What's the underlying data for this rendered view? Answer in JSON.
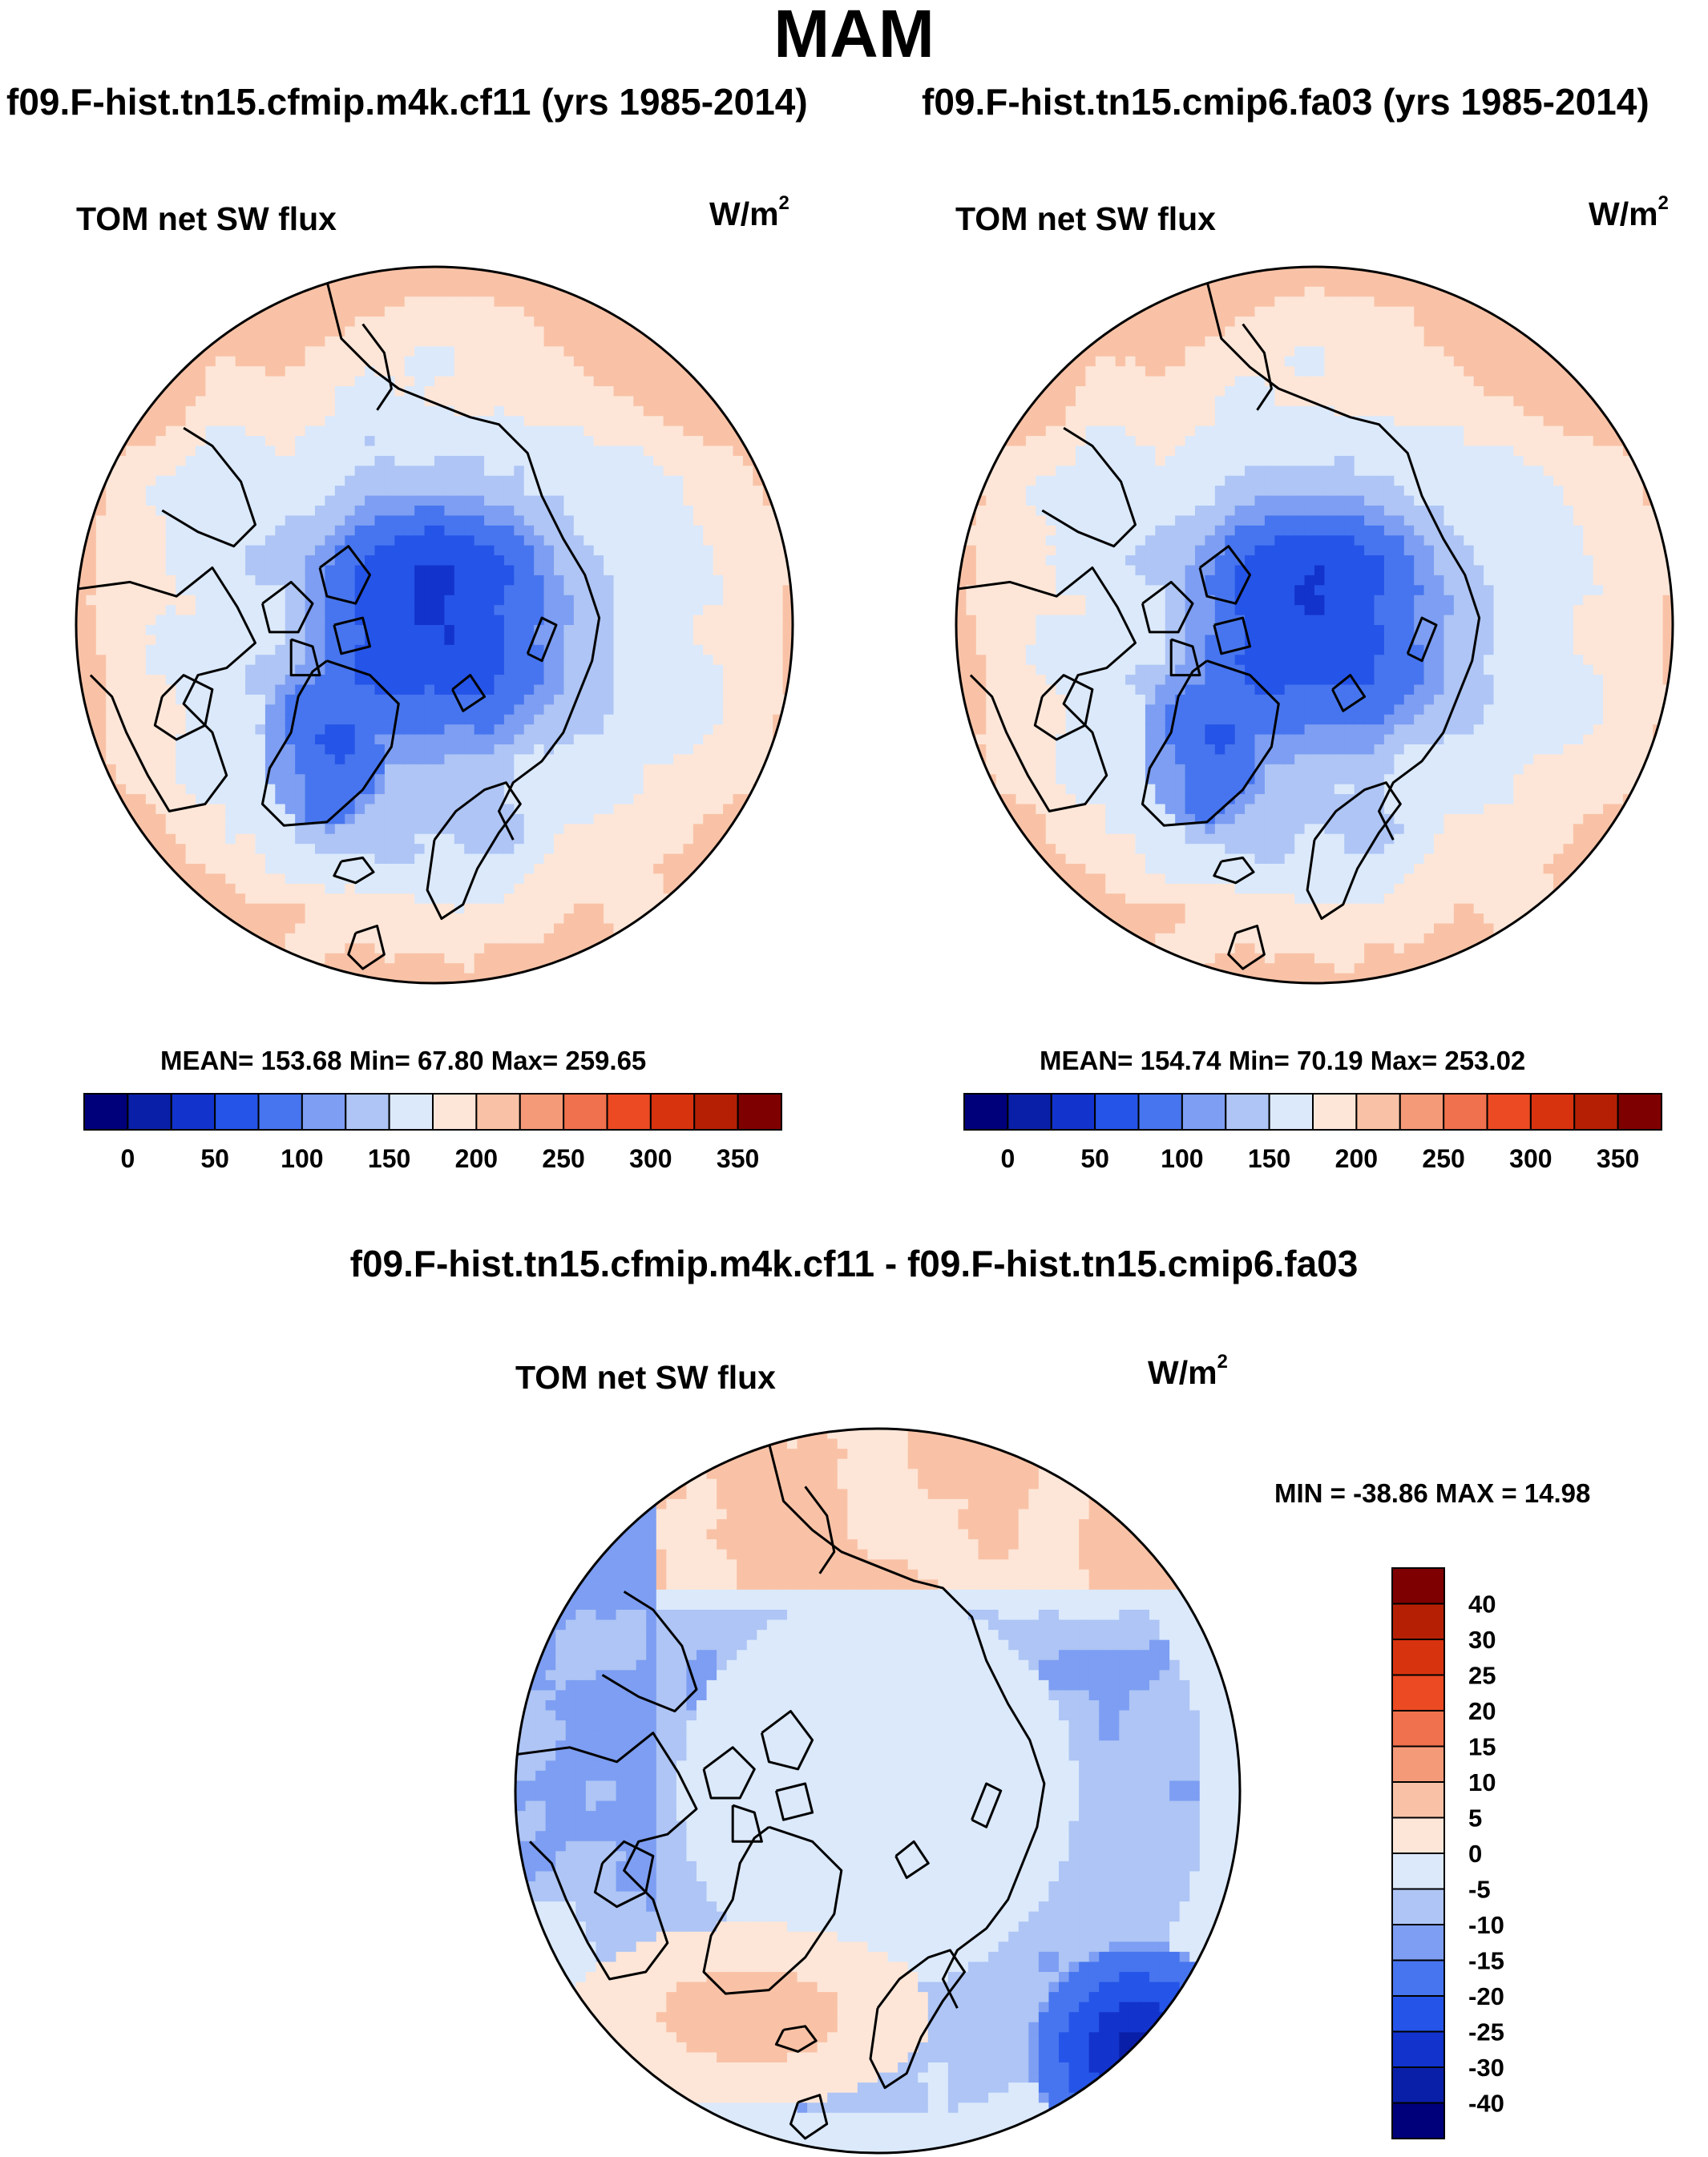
{
  "page": {
    "season": "MAM"
  },
  "panels": [
    {
      "case_title": "f09.F-hist.tn15.cfmip.m4k.cf11 (yrs 1985-2014)",
      "variable": "TOM net SW flux",
      "units_base": "W/m",
      "units_exp": "2",
      "stats": "MEAN= 153.68  Min=  67.80  Max= 259.65",
      "field": {
        "pole": 45,
        "lat60": 140,
        "lat40": 175,
        "edge": 205,
        "greenland": 80,
        "atlantic_edge": 200
      }
    },
    {
      "case_title": "f09.F-hist.tn15.cmip6.fa03 (yrs 1985-2014)",
      "variable": "TOM net SW flux",
      "units_base": "W/m",
      "units_exp": "2",
      "stats": "MEAN= 154.74  Min=  70.19  Max= 253.02",
      "field": {
        "pole": 48,
        "lat60": 142,
        "lat40": 176,
        "edge": 203,
        "greenland": 82,
        "atlantic_edge": 196
      }
    }
  ],
  "abs_colorbar": {
    "levels": [
      -25,
      0,
      25,
      50,
      75,
      100,
      125,
      150,
      175,
      200,
      225,
      250,
      275,
      300,
      325,
      350,
      375
    ],
    "tick_labels": [
      "0",
      "50",
      "100",
      "150",
      "200",
      "250",
      "300",
      "350"
    ],
    "tick_values": [
      0,
      50,
      100,
      150,
      200,
      250,
      300,
      350
    ],
    "colors": [
      "#00007a",
      "#0a1fa8",
      "#1233cc",
      "#2554e8",
      "#4775ef",
      "#7d9ef2",
      "#aec5f5",
      "#dbe9fb",
      "#fde6d8",
      "#f9c2a6",
      "#f49a78",
      "#ef714d",
      "#eb4a22",
      "#d8330f",
      "#b52005",
      "#7f0000"
    ]
  },
  "diff": {
    "title": "f09.F-hist.tn15.cfmip.m4k.cf11 - f09.F-hist.tn15.cmip6.fa03",
    "variable": "TOM net SW flux",
    "units_base": "W/m",
    "units_exp": "2",
    "minmax": "MIN = -38.86 MAX =  14.98",
    "colorbar": {
      "tick_labels": [
        "40",
        "30",
        "25",
        "20",
        "15",
        "10",
        "5",
        "0",
        "-5",
        "-10",
        "-15",
        "-20",
        "-25",
        "-30",
        "-40"
      ],
      "colors_top_to_bottom": [
        "#7f0000",
        "#b52005",
        "#d8330f",
        "#eb4a22",
        "#ef714d",
        "#f49a78",
        "#f9c2a6",
        "#fde6d8",
        "#dbe9fb",
        "#aec5f5",
        "#7d9ef2",
        "#4775ef",
        "#2554e8",
        "#1233cc",
        "#0a1fa8",
        "#00007a"
      ]
    }
  },
  "chart_data": [
    {
      "type": "heatmap",
      "title": "TOM net SW flux",
      "subtitle": "f09.F-hist.tn15.cfmip.m4k.cf11 (yrs 1985-2014)",
      "units": "W/m2",
      "projection": "north-polar stereographic",
      "mean": 153.68,
      "min": 67.8,
      "max": 259.65,
      "colorbar_ticks": [
        0,
        50,
        100,
        150,
        200,
        250,
        300,
        350
      ]
    },
    {
      "type": "heatmap",
      "title": "TOM net SW flux",
      "subtitle": "f09.F-hist.tn15.cmip6.fa03 (yrs 1985-2014)",
      "units": "W/m2",
      "projection": "north-polar stereographic",
      "mean": 154.74,
      "min": 70.19,
      "max": 253.02,
      "colorbar_ticks": [
        0,
        50,
        100,
        150,
        200,
        250,
        300,
        350
      ]
    },
    {
      "type": "heatmap",
      "title": "TOM net SW flux",
      "subtitle": "f09.F-hist.tn15.cfmip.m4k.cf11 - f09.F-hist.tn15.cmip6.fa03",
      "units": "W/m2",
      "projection": "north-polar stereographic",
      "min": -38.86,
      "max": 14.98,
      "colorbar_ticks": [
        -40,
        -30,
        -25,
        -20,
        -15,
        -10,
        -5,
        0,
        5,
        10,
        15,
        20,
        25,
        30,
        40
      ]
    }
  ]
}
